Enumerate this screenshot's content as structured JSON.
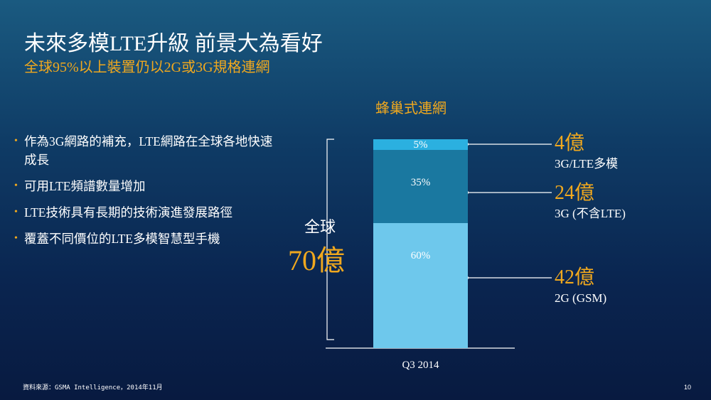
{
  "slide": {
    "title": "未來多模LTE升級 前景大為看好",
    "subtitle": "全球95%以上裝置仍以2G或3G規格連網",
    "bullet_marker": "•",
    "bullets": [
      "作為3G網路的補充，LTE網路在全球各地快速成長",
      "可用LTE頻譜數量增加",
      "LTE技術具有長期的技術演進發展路徑",
      "覆蓋不同價位的LTE多模智慧型手機"
    ],
    "global_label": "全球",
    "global_value": "70億",
    "source": "資料來源：GSMA Intelligence，2014年11月",
    "page_number": "10"
  },
  "colors": {
    "accent": "#f0a81e",
    "seg_3g_lte": "#2bb0e0",
    "seg_3g": "#1a78a0",
    "seg_2g": "#6ec8ec"
  },
  "chart_data": {
    "type": "bar",
    "stacked": true,
    "title": "蜂巢式連網",
    "categories": [
      "Q3 2014"
    ],
    "ylim": [
      0,
      100
    ],
    "series": [
      {
        "name": "2G (GSM)",
        "value": 60,
        "value_label": "60%",
        "callout_value": "42億",
        "color": "#6ec8ec"
      },
      {
        "name": "3G (不含LTE)",
        "value": 35,
        "value_label": "35%",
        "callout_value": "24億",
        "color": "#1a78a0"
      },
      {
        "name": "3G/LTE多模",
        "value": 5,
        "value_label": "5%",
        "callout_value": "4億",
        "color": "#2bb0e0"
      }
    ]
  }
}
